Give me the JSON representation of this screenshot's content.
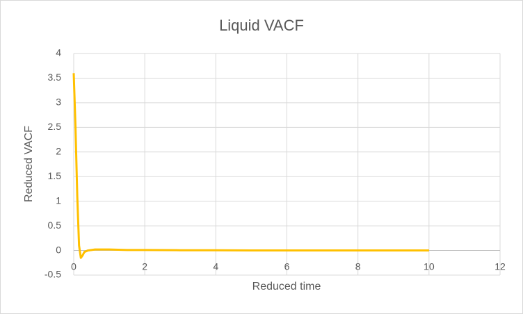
{
  "chart_data": {
    "type": "line",
    "title": "Liquid VACF",
    "x_label": "Reduced time",
    "y_label": "Reduced VACF",
    "x": [
      0,
      0.05,
      0.1,
      0.15,
      0.2,
      0.25,
      0.3,
      0.4,
      0.5,
      0.6,
      0.8,
      1,
      1.5,
      2,
      3,
      4,
      5,
      6,
      7,
      8,
      9,
      10
    ],
    "series": [
      {
        "color": "#ffc000",
        "values": [
          3.6,
          2.5,
          1.1,
          0.1,
          -0.15,
          -0.1,
          -0.03,
          0,
          0.01,
          0.02,
          0.02,
          0.02,
          0.01,
          0.01,
          0.005,
          0.005,
          0,
          0,
          0,
          0,
          0,
          0
        ]
      }
    ],
    "xlim": [
      0,
      12
    ],
    "xticks": [
      0,
      2,
      4,
      6,
      8,
      10,
      12
    ],
    "ylim": [
      -0.5,
      4
    ],
    "yticks": [
      -0.5,
      0,
      0.5,
      1,
      1.5,
      2,
      2.5,
      3,
      3.5,
      4
    ],
    "grid": true
  }
}
